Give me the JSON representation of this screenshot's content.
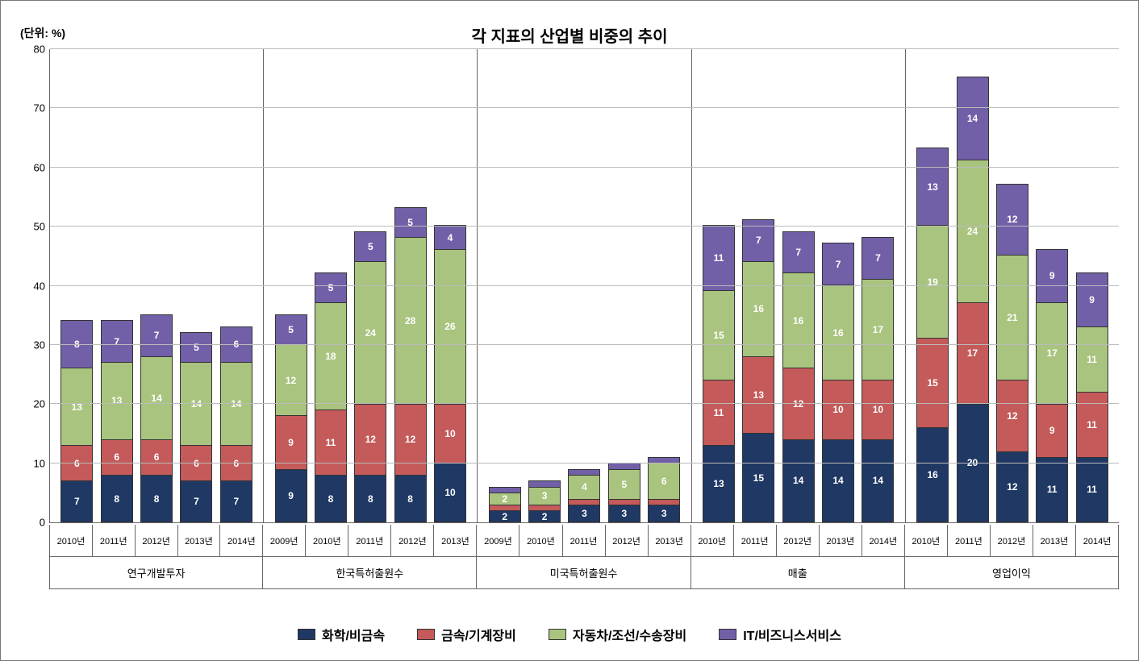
{
  "chart": {
    "type": "stacked-bar",
    "title": "각 지표의 산업별 비중의 추이",
    "unit_label": "(단위: %)",
    "ymax": 80,
    "ytick_step": 10,
    "yticks": [
      0,
      10,
      20,
      30,
      40,
      50,
      60,
      70,
      80
    ],
    "background_color": "#ffffff",
    "grid_color": "#bbbbbb",
    "axis_color": "#666666",
    "title_fontsize": 20,
    "label_fontsize": 13,
    "bar_value_fontsize": 12,
    "bar_value_color": "#ffffff",
    "series": [
      {
        "key": "chem",
        "label": "화학/비금속",
        "color": "#1f3864"
      },
      {
        "key": "metal",
        "label": "금속/기계장비",
        "color": "#c55a5a"
      },
      {
        "key": "auto",
        "label": "자동차/조선/수송장비",
        "color": "#a9c47f"
      },
      {
        "key": "it",
        "label": "IT/비즈니스서비스",
        "color": "#7160a8"
      }
    ],
    "groups": [
      {
        "name": "연구개발투자",
        "bars": [
          {
            "year": "2010년",
            "v": {
              "chem": 7,
              "metal": 6,
              "auto": 13,
              "it": 8
            }
          },
          {
            "year": "2011년",
            "v": {
              "chem": 8,
              "metal": 6,
              "auto": 13,
              "it": 7
            }
          },
          {
            "year": "2012년",
            "v": {
              "chem": 8,
              "metal": 6,
              "auto": 14,
              "it": 7
            }
          },
          {
            "year": "2013년",
            "v": {
              "chem": 7,
              "metal": 6,
              "auto": 14,
              "it": 5
            }
          },
          {
            "year": "2014년",
            "v": {
              "chem": 7,
              "metal": 6,
              "auto": 14,
              "it": 6
            }
          }
        ]
      },
      {
        "name": "한국특허출원수",
        "bars": [
          {
            "year": "2009년",
            "v": {
              "chem": 9,
              "metal": 9,
              "auto": 12,
              "it": 5
            }
          },
          {
            "year": "2010년",
            "v": {
              "chem": 8,
              "metal": 11,
              "auto": 18,
              "it": 5
            }
          },
          {
            "year": "2011년",
            "v": {
              "chem": 8,
              "metal": 12,
              "auto": 24,
              "it": 5
            }
          },
          {
            "year": "2012년",
            "v": {
              "chem": 8,
              "metal": 12,
              "auto": 28,
              "it": 5
            }
          },
          {
            "year": "2013년",
            "v": {
              "chem": 10,
              "metal": 10,
              "auto": 26,
              "it": 4
            }
          }
        ]
      },
      {
        "name": "미국특허출원수",
        "bars": [
          {
            "year": "2009년",
            "v": {
              "chem": 2,
              "metal": 1,
              "auto": 2,
              "it": 1
            }
          },
          {
            "year": "2010년",
            "v": {
              "chem": 2,
              "metal": 1,
              "auto": 3,
              "it": 1
            }
          },
          {
            "year": "2011년",
            "v": {
              "chem": 3,
              "metal": 1,
              "auto": 4,
              "it": 1
            }
          },
          {
            "year": "2012년",
            "v": {
              "chem": 3,
              "metal": 1,
              "auto": 5,
              "it": 1
            }
          },
          {
            "year": "2013년",
            "v": {
              "chem": 3,
              "metal": 1,
              "auto": 6,
              "it": 1
            }
          }
        ]
      },
      {
        "name": "매출",
        "bars": [
          {
            "year": "2010년",
            "v": {
              "chem": 13,
              "metal": 11,
              "auto": 15,
              "it": 11
            }
          },
          {
            "year": "2011년",
            "v": {
              "chem": 15,
              "metal": 13,
              "auto": 16,
              "it": 7
            }
          },
          {
            "year": "2012년",
            "v": {
              "chem": 14,
              "metal": 12,
              "auto": 16,
              "it": 7
            }
          },
          {
            "year": "2013년",
            "v": {
              "chem": 14,
              "metal": 10,
              "auto": 16,
              "it": 7
            }
          },
          {
            "year": "2014년",
            "v": {
              "chem": 14,
              "metal": 10,
              "auto": 17,
              "it": 7
            }
          }
        ]
      },
      {
        "name": "영업이익",
        "bars": [
          {
            "year": "2010년",
            "v": {
              "chem": 16,
              "metal": 15,
              "auto": 19,
              "it": 13
            }
          },
          {
            "year": "2011년",
            "v": {
              "chem": 20,
              "metal": 17,
              "auto": 24,
              "it": 14
            }
          },
          {
            "year": "2012년",
            "v": {
              "chem": 12,
              "metal": 12,
              "auto": 21,
              "it": 12
            }
          },
          {
            "year": "2013년",
            "v": {
              "chem": 11,
              "metal": 9,
              "auto": 17,
              "it": 9
            }
          },
          {
            "year": "2014년",
            "v": {
              "chem": 11,
              "metal": 11,
              "auto": 11,
              "it": 9
            }
          }
        ]
      }
    ]
  }
}
